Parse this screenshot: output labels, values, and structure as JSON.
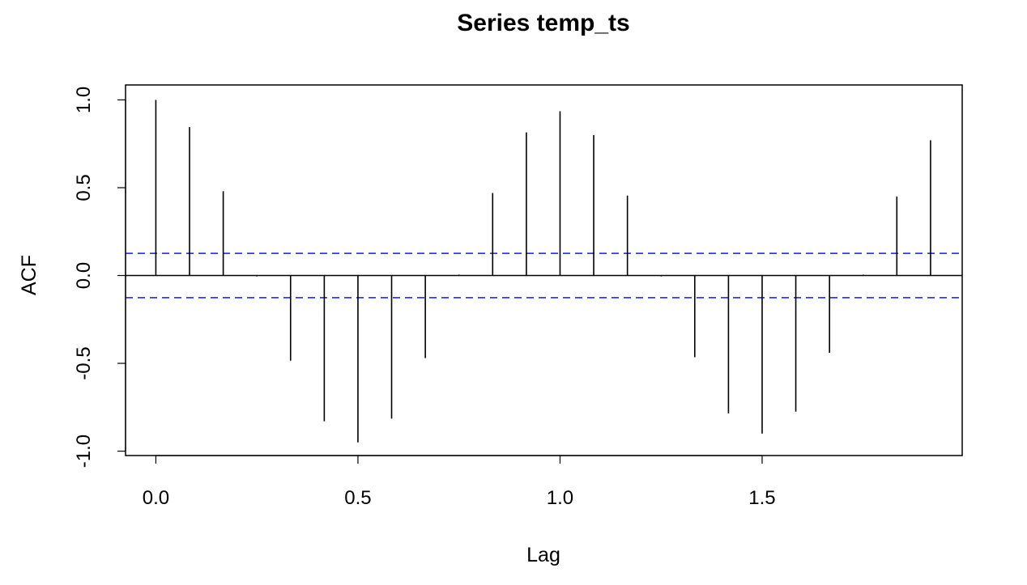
{
  "chart_data": {
    "type": "bar",
    "title": "Series  temp_ts",
    "xlabel": "Lag",
    "ylabel": "ACF",
    "xlim": [
      -0.075,
      1.995
    ],
    "ylim": [
      -1.025,
      1.085
    ],
    "x_ticks": [
      0.0,
      0.5,
      1.0,
      1.5
    ],
    "x_tick_labels": [
      "0.0",
      "0.5",
      "1.0",
      "1.5"
    ],
    "y_ticks": [
      -1.0,
      -0.5,
      0.0,
      0.5,
      1.0
    ],
    "y_tick_labels": [
      "-1.0",
      "-0.5",
      "0.0",
      "0.5",
      "1.0"
    ],
    "confidence_limit": 0.126,
    "lags": [
      0.0,
      0.0833,
      0.1667,
      0.25,
      0.3333,
      0.4167,
      0.5,
      0.5833,
      0.6667,
      0.75,
      0.8333,
      0.9167,
      1.0,
      1.0833,
      1.1667,
      1.25,
      1.3333,
      1.4167,
      1.5,
      1.5833,
      1.6667,
      1.75,
      1.8333,
      1.9167
    ],
    "acf": [
      1.0,
      0.845,
      0.48,
      -0.005,
      -0.485,
      -0.83,
      -0.95,
      -0.815,
      -0.47,
      0.005,
      0.47,
      0.815,
      0.935,
      0.8,
      0.455,
      -0.005,
      -0.465,
      -0.785,
      -0.9,
      -0.775,
      -0.44,
      0.005,
      0.45,
      0.77
    ],
    "grid": false,
    "colors": {
      "bars": "#000000",
      "ci": "#2b3ff2",
      "zero_line": "#000000"
    }
  }
}
